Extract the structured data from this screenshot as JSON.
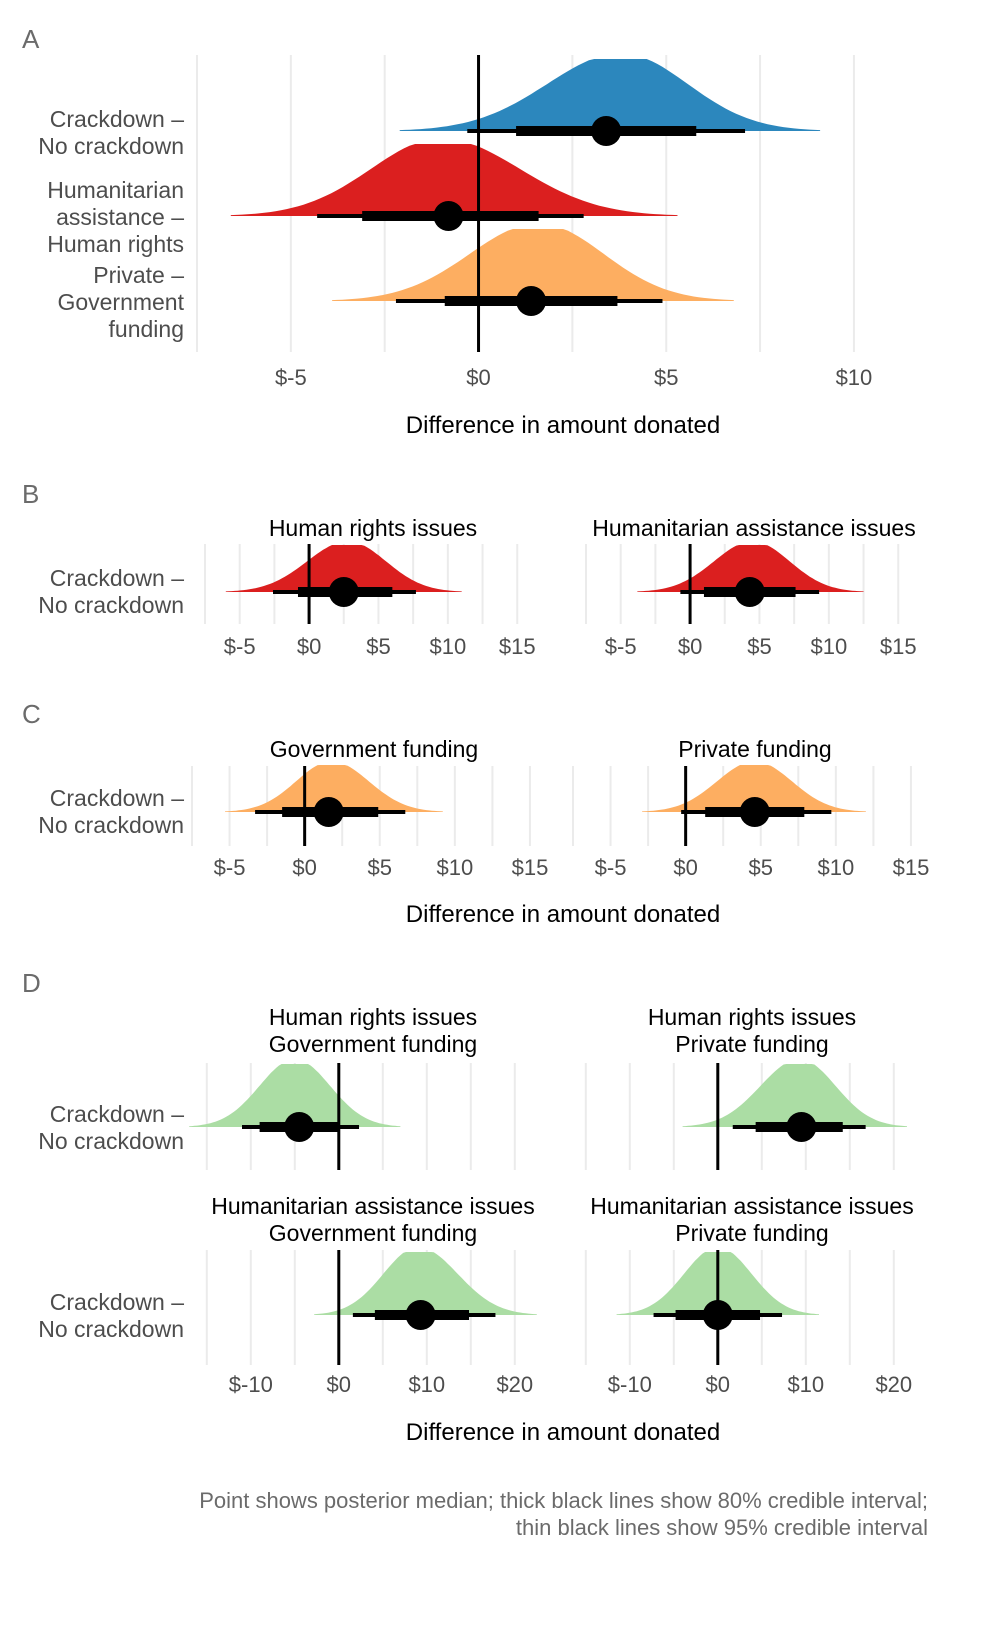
{
  "caption": {
    "line1": "Point shows posterior median; thick black lines show 80% credible interval;",
    "line2": "thin black lines show 95% credible interval"
  },
  "colors": {
    "blue": "#2c87bd",
    "red": "#db1f1f",
    "orange": "#fdae61",
    "green": "#abdda4",
    "interval": "#000000",
    "grid": "#ebebeb"
  },
  "chart_data": [
    {
      "panel": "A",
      "type": "halfeye",
      "xlabel": "Difference in amount donated",
      "xlim": [
        -7.5,
        12
      ],
      "xticks": [
        -5,
        0,
        5,
        10
      ],
      "xtick_labels": [
        "$-5",
        "$0",
        "$5",
        "$10"
      ],
      "series": [
        {
          "label": "Crackdown –\nNo crackdown",
          "color": "blue",
          "median": 3.4,
          "ci80": [
            1.0,
            5.8
          ],
          "ci95": [
            -0.3,
            7.1
          ],
          "range": [
            -2.1,
            9.1
          ],
          "max_density_at": 3.8
        },
        {
          "label": "Humanitarian\nassistance –\nHuman rights",
          "color": "red",
          "median": -0.8,
          "ci80": [
            -3.1,
            1.6
          ],
          "ci95": [
            -4.3,
            2.8
          ],
          "range": [
            -6.6,
            5.3
          ],
          "max_density_at": -1.0
        },
        {
          "label": "Private –\nGovernment\nfunding",
          "color": "orange",
          "median": 1.4,
          "ci80": [
            -0.9,
            3.7
          ],
          "ci95": [
            -2.2,
            4.9
          ],
          "range": [
            -3.9,
            6.8
          ],
          "max_density_at": 1.6
        }
      ]
    },
    {
      "panel": "B",
      "type": "halfeye",
      "xlim": [
        -7.5,
        17
      ],
      "xticks": [
        -5,
        0,
        5,
        10,
        15
      ],
      "xtick_labels": [
        "$-5",
        "$0",
        "$5",
        "$10",
        "$15"
      ],
      "facets": [
        {
          "title": "Human rights issues",
          "series": [
            {
              "label": "Crackdown –\nNo crackdown",
              "color": "red",
              "median": 2.5,
              "ci80": [
                -0.8,
                6.0
              ],
              "ci95": [
                -2.6,
                7.7
              ],
              "range": [
                -6.0,
                11.0
              ],
              "max_density_at": 2.8
            }
          ]
        },
        {
          "title": "Humanitarian assistance issues",
          "series": [
            {
              "label": "Crackdown –\nNo crackdown",
              "color": "red",
              "median": 4.3,
              "ci80": [
                1.0,
                7.6
              ],
              "ci95": [
                -0.7,
                9.3
              ],
              "range": [
                -3.8,
                12.5
              ],
              "max_density_at": 4.5
            }
          ]
        }
      ]
    },
    {
      "panel": "C",
      "type": "halfeye",
      "xlabel": "Difference in amount donated",
      "xlim": [
        -7.5,
        17
      ],
      "xticks": [
        -5,
        0,
        5,
        10,
        15
      ],
      "xtick_labels": [
        "$-5",
        "$0",
        "$5",
        "$10",
        "$15"
      ],
      "facets": [
        {
          "title": "Government funding",
          "series": [
            {
              "label": "Crackdown –\nNo crackdown",
              "color": "orange",
              "median": 1.6,
              "ci80": [
                -1.5,
                4.9
              ],
              "ci95": [
                -3.3,
                6.7
              ],
              "range": [
                -5.3,
                9.2
              ],
              "max_density_at": 1.8
            }
          ]
        },
        {
          "title": "Private funding",
          "series": [
            {
              "label": "Crackdown –\nNo crackdown",
              "color": "orange",
              "median": 4.6,
              "ci80": [
                1.3,
                7.9
              ],
              "ci95": [
                -0.3,
                9.7
              ],
              "range": [
                -2.9,
                12.0
              ],
              "max_density_at": 4.6
            }
          ]
        }
      ]
    },
    {
      "panel": "D",
      "type": "halfeye",
      "xlabel": "Difference in amount donated",
      "xlim": [
        -16,
        24
      ],
      "xticks": [
        -10,
        0,
        10,
        20
      ],
      "xtick_labels": [
        "$-10",
        "$0",
        "$10",
        "$20"
      ],
      "facets": [
        {
          "title": "Human rights issues\nGovernment funding",
          "series": [
            {
              "label": "Crackdown –\nNo crackdown",
              "color": "green",
              "median": -4.5,
              "ci80": [
                -9.0,
                0.0
              ],
              "ci95": [
                -11.0,
                2.3
              ],
              "range": [
                -17.0,
                7.0
              ],
              "max_density_at": -5.0
            }
          ]
        },
        {
          "title": "Human rights issues\nPrivate funding",
          "series": [
            {
              "label": "Crackdown –\nNo crackdown",
              "color": "green",
              "median": 9.5,
              "ci80": [
                4.3,
                14.2
              ],
              "ci95": [
                1.7,
                16.8
              ],
              "range": [
                -4.0,
                21.5
              ],
              "max_density_at": 9.3
            }
          ]
        },
        {
          "title": "Humanitarian assistance issues\nGovernment funding",
          "series": [
            {
              "label": "Crackdown –\nNo crackdown",
              "color": "green",
              "median": 9.3,
              "ci80": [
                4.1,
                14.8
              ],
              "ci95": [
                1.6,
                17.8
              ],
              "range": [
                -2.8,
                22.5
              ],
              "max_density_at": 9.0
            }
          ]
        },
        {
          "title": "Humanitarian assistance issues\nPrivate funding",
          "series": [
            {
              "label": "Crackdown –\nNo crackdown",
              "color": "green",
              "median": 0.0,
              "ci80": [
                -4.8,
                4.8
              ],
              "ci95": [
                -7.3,
                7.3
              ],
              "range": [
                -11.5,
                11.5
              ],
              "max_density_at": 0.0
            }
          ]
        }
      ]
    }
  ]
}
